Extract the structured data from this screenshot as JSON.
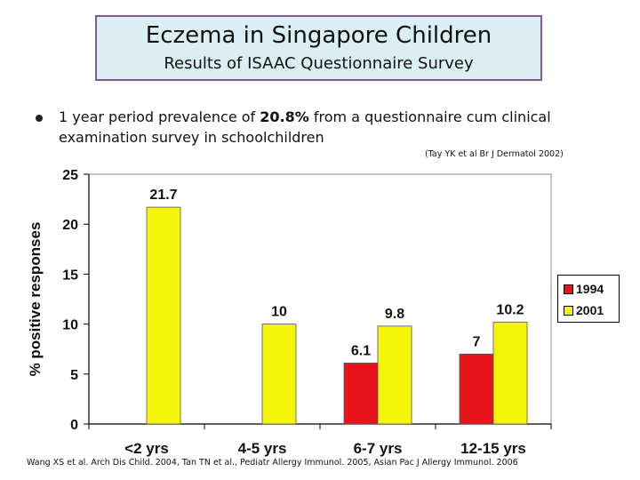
{
  "header": {
    "title": "Eczema in Singapore Children",
    "subtitle": "Results of ISAAC Questionnaire Survey"
  },
  "bullet": {
    "text_pre": "1 year period prevalence of ",
    "text_bold": "20.8%",
    "text_post": " from a questionnaire cum clinical examination survey in schoolchildren"
  },
  "refs": {
    "ref1": "(Tay YK et al Br J Dermatol 2002)",
    "ref2": "Wang XS et al. Arch Dis Child. 2004, Tan TN et al., Pediatr Allergy Immunol. 2005, Asian Pac J Allergy Immunol. 2006"
  },
  "colors": {
    "s1994": "#e8141c",
    "s2001": "#f5f50a",
    "plot_bg": "#ffffff"
  },
  "chart_data": {
    "type": "bar",
    "title": "",
    "xlabel": "",
    "ylabel": "% positive responses",
    "ylim": [
      0,
      25
    ],
    "yticks": [
      "0",
      "5",
      "10",
      "15",
      "20",
      "25"
    ],
    "categories": [
      "<2 yrs",
      "4-5 yrs",
      "6-7 yrs",
      "12-15 yrs"
    ],
    "series": [
      {
        "name": "1994",
        "values": [
          null,
          null,
          6.1,
          7
        ],
        "labels": [
          "",
          "",
          "6.1",
          "7"
        ]
      },
      {
        "name": "2001",
        "values": [
          21.7,
          10,
          9.8,
          10.2
        ],
        "labels": [
          "21.7",
          "10",
          "9.8",
          "10.2"
        ]
      }
    ],
    "legend": {
      "position": "right",
      "entries": [
        "1994",
        "2001"
      ]
    }
  }
}
